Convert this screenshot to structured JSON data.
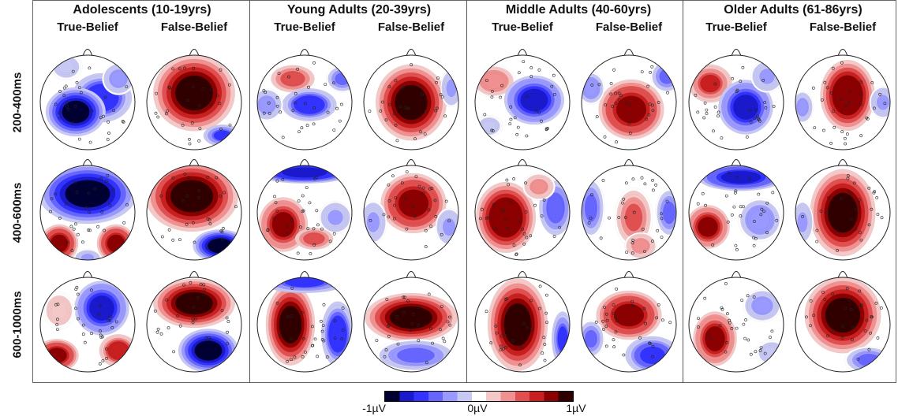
{
  "groups": [
    {
      "title": "Adolescents (10-19yrs)",
      "conditions": [
        "True-Belief",
        "False-Belief"
      ]
    },
    {
      "title": "Young Adults (20-39yrs)",
      "conditions": [
        "True-Belief",
        "False-Belief"
      ]
    },
    {
      "title": "Middle Adults (40-60yrs)",
      "conditions": [
        "True-Belief",
        "False-Belief"
      ]
    },
    {
      "title": "Older Adults (61-86yrs)",
      "conditions": [
        "True-Belief",
        "False-Belief"
      ]
    }
  ],
  "time_windows": [
    "200-400ms",
    "400-600ms",
    "600-1000ms"
  ],
  "colorbar": {
    "min_label": "-1µV",
    "mid_label": "0µV",
    "max_label": "1µV",
    "colors": [
      "#000033",
      "#1a1acc",
      "#3333ff",
      "#6666ff",
      "#9999ff",
      "#c8c8f5",
      "#ffffff",
      "#f5c8c8",
      "#f09090",
      "#e05050",
      "#c82020",
      "#8b0000",
      "#300000"
    ]
  }
}
